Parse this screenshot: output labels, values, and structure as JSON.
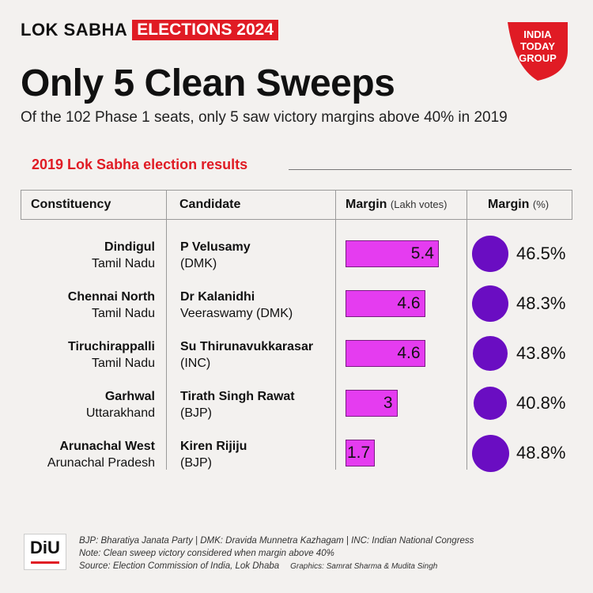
{
  "brand": {
    "part1": "LOK SABHA",
    "part2": "ELECTIONS 2024"
  },
  "publisher": {
    "line1": "INDIA",
    "line2": "TODAY",
    "line3": "GROUP"
  },
  "title": "Only 5 Clean Sweeps",
  "subtitle": "Of the 102 Phase 1 seats, only 5 saw victory margins above 40% in 2019",
  "section_title": "2019 Lok Sabha election results",
  "columns": {
    "constituency": "Constituency",
    "candidate": "Candidate",
    "margin_votes": "Margin",
    "margin_votes_unit": "(Lakh votes)",
    "margin_pct": "Margin",
    "margin_pct_unit": "(%)"
  },
  "chart_data": {
    "type": "table",
    "rows": [
      {
        "constituency": "Dindigul",
        "state": "Tamil Nadu",
        "candidate_line1": "P Velusamy",
        "candidate_line2": "(DMK)",
        "margin_lakh": 5.4,
        "margin_lakh_label": "5.4",
        "margin_pct": 46.5,
        "margin_pct_label": "46.5%"
      },
      {
        "constituency": "Chennai North",
        "state": "Tamil Nadu",
        "candidate_line1": "Dr Kalanidhi",
        "candidate_line2": "Veeraswamy (DMK)",
        "margin_lakh": 4.6,
        "margin_lakh_label": "4.6",
        "margin_pct": 48.3,
        "margin_pct_label": "48.3%"
      },
      {
        "constituency": "Tiruchirappalli",
        "state": "Tamil Nadu",
        "candidate_line1": "Su Thirunavukkarasar",
        "candidate_line2": "(INC)",
        "margin_lakh": 4.6,
        "margin_lakh_label": "4.6",
        "margin_pct": 43.8,
        "margin_pct_label": "43.8%"
      },
      {
        "constituency": "Garhwal",
        "state": "Uttarakhand",
        "candidate_line1": "Tirath Singh Rawat",
        "candidate_line2": "(BJP)",
        "margin_lakh": 3,
        "margin_lakh_label": "3",
        "margin_pct": 40.8,
        "margin_pct_label": "40.8%"
      },
      {
        "constituency": "Arunachal West",
        "state": "Arunachal Pradesh",
        "candidate_line1": "Kiren Rijiju",
        "candidate_line2": "(BJP)",
        "margin_lakh": 1.7,
        "margin_lakh_label": "1.7",
        "margin_pct": 48.8,
        "margin_pct_label": "48.8%"
      }
    ],
    "bar_color": "#e53cf0",
    "circle_color": "#6a0dc2"
  },
  "footer": {
    "line1": "BJP: Bharatiya Janata Party  |  DMK: Dravida Munnetra Kazhagam  |  INC: Indian National Congress",
    "line2": "Note: Clean sweep victory considered when margin above 40%",
    "line3": "Source: Election Commission of India, Lok Dhaba",
    "credits": "Graphics: Samrat Sharma & Mudita Singh",
    "badge": "DiU"
  },
  "colors": {
    "accent": "#e01b24",
    "bar": "#e53cf0",
    "circle": "#6a0dc2"
  }
}
